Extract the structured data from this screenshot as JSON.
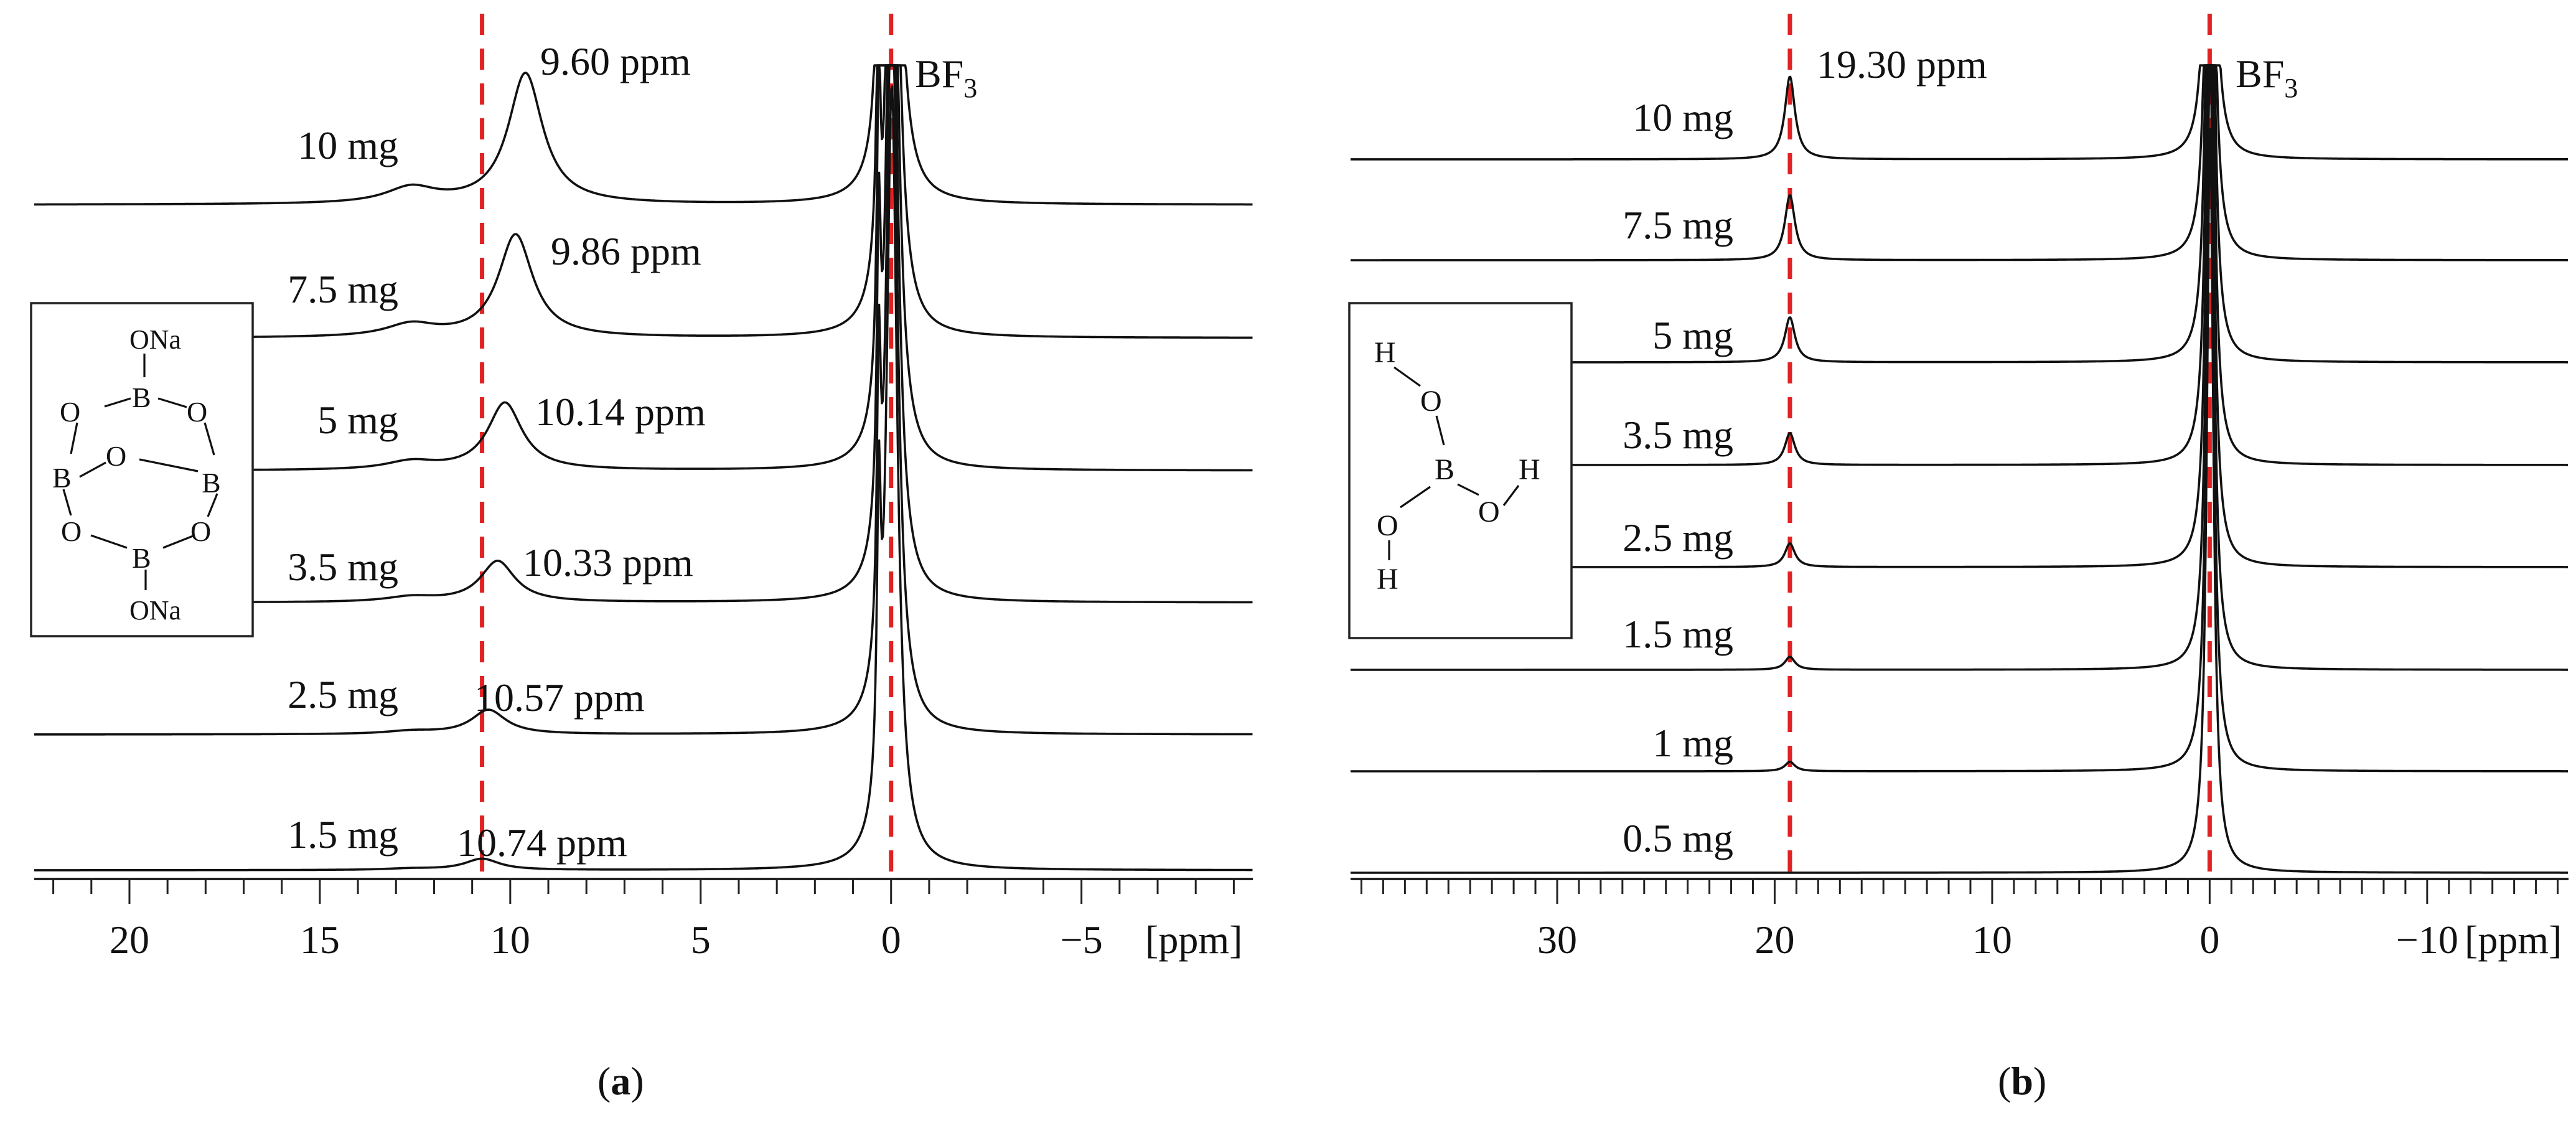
{
  "chart_data": [
    {
      "type": "line",
      "panel_label": "a",
      "xlabel": "[ppm]",
      "xlim": [
        22.5,
        -9.5
      ],
      "x_ticks": [
        20,
        15,
        10,
        5,
        0,
        -5
      ],
      "x_tick_labels": [
        "20",
        "15",
        "10",
        "5",
        "0",
        "−5"
      ],
      "reference_lines_ppm": [
        10.74,
        0.0
      ],
      "reference_peak": {
        "label": "BF",
        "subscript": "3",
        "ppm": 0.0
      },
      "series": [
        {
          "name": "10 mg",
          "peak_ppm": 9.6,
          "peak_label": "9.60 ppm",
          "relative_height": 0.7
        },
        {
          "name": "7.5 mg",
          "peak_ppm": 9.86,
          "peak_label": "9.86 ppm",
          "relative_height": 0.55
        },
        {
          "name": "5 mg",
          "peak_ppm": 10.14,
          "peak_label": "10.14 ppm",
          "relative_height": 0.36
        },
        {
          "name": "3.5 mg",
          "peak_ppm": 10.33,
          "peak_label": "10.33 ppm",
          "relative_height": 0.22
        },
        {
          "name": "2.5 mg",
          "peak_ppm": 10.57,
          "peak_label": "10.57 ppm",
          "relative_height": 0.13
        },
        {
          "name": "1.5 mg",
          "peak_ppm": 10.74,
          "peak_label": "10.74 ppm",
          "relative_height": 0.06
        }
      ],
      "structure_labels": {
        "top": "ONa",
        "bottom": "ONa",
        "o": "O",
        "b": "B"
      }
    },
    {
      "type": "line",
      "panel_label": "b",
      "xlabel": "[ppm]",
      "xlim": [
        39.5,
        -16.5
      ],
      "x_ticks": [
        30,
        20,
        10,
        0,
        -10
      ],
      "x_tick_labels": [
        "30",
        "20",
        "10",
        "0",
        "−10"
      ],
      "reference_lines_ppm": [
        19.3,
        0.0
      ],
      "reference_peak": {
        "label": "BF",
        "subscript": "3",
        "ppm": 0.0
      },
      "peak_ppm": 19.3,
      "peak_label": "19.30 ppm",
      "series": [
        {
          "name": "10 mg",
          "relative_height": 0.7
        },
        {
          "name": "7.5 mg",
          "relative_height": 0.55
        },
        {
          "name": "5 mg",
          "relative_height": 0.38
        },
        {
          "name": "3.5 mg",
          "relative_height": 0.27
        },
        {
          "name": "2.5 mg",
          "relative_height": 0.2
        },
        {
          "name": "1.5 mg",
          "relative_height": 0.11
        },
        {
          "name": "1 mg",
          "relative_height": 0.08
        },
        {
          "name": "0.5 mg",
          "relative_height": 0.0
        }
      ],
      "structure_labels": {
        "h": "H",
        "o": "O",
        "b": "B"
      }
    }
  ]
}
